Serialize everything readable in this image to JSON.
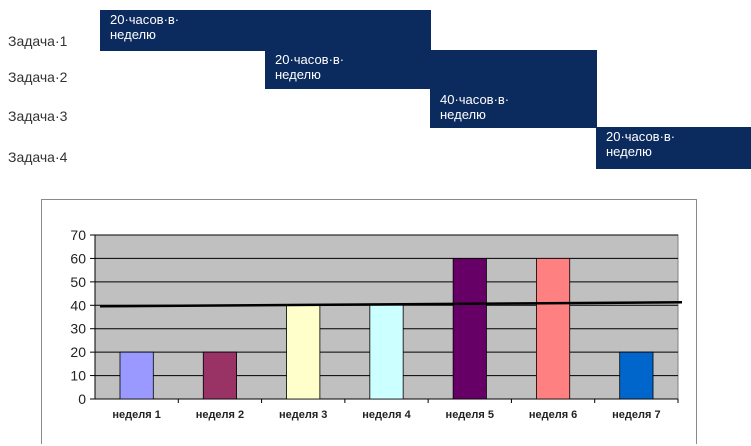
{
  "gantt": {
    "tasks": [
      {
        "label": "Задача·1",
        "bar_text": "20·часов·в·\nнеделю",
        "start_week": 1,
        "end_week": 2
      },
      {
        "label": "Задача·2",
        "bar_text": "20·часов·в·\nнеделю",
        "start_week": 3,
        "end_week": 4
      },
      {
        "label": "Задача·3",
        "bar_text": "40·часов·в·\nнеделю",
        "start_week": 5,
        "end_week": 6
      },
      {
        "label": "Задача·4",
        "bar_text": "20·часов·в·\nнеделю",
        "start_week": 7,
        "end_week": 7
      }
    ],
    "bar_color": "#0b2a5e"
  },
  "chart_data": {
    "type": "bar",
    "categories": [
      "неделя 1",
      "неделя 2",
      "неделя 3",
      "неделя 4",
      "неделя 5",
      "неделя 6",
      "неделя 7"
    ],
    "values": [
      20,
      20,
      40,
      40,
      60,
      60,
      20
    ],
    "colors": [
      "#9999ff",
      "#993366",
      "#ffffcc",
      "#ccffff",
      "#660066",
      "#ff8080",
      "#0066cc"
    ],
    "ylim": [
      0,
      70
    ],
    "yticks": [
      0,
      10,
      20,
      30,
      40,
      50,
      60,
      70
    ],
    "reference_line": {
      "value": 40,
      "color": "#000000"
    },
    "plot_background": "#c0c0c0",
    "grid": true,
    "title": "",
    "xlabel": "",
    "ylabel": ""
  }
}
